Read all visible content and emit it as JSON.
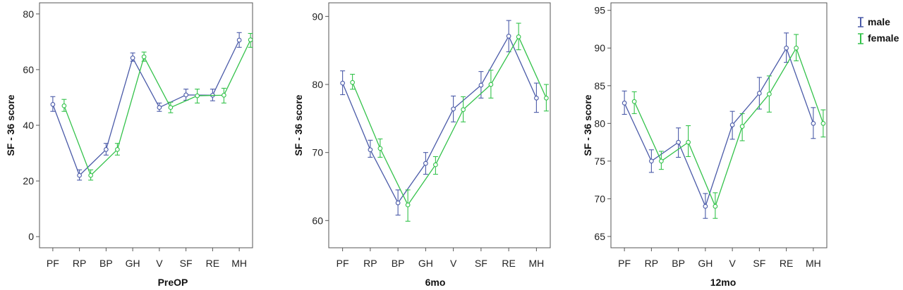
{
  "legend": {
    "position": "top-right",
    "entries": [
      {
        "name": "male",
        "color": "#4a5aa8"
      },
      {
        "name": "female",
        "color": "#33c24a"
      }
    ]
  },
  "chart_data": [
    {
      "type": "line",
      "xlabel": "PreOP",
      "ylabel": "SF - 36 score",
      "categories": [
        "PF",
        "RP",
        "BP",
        "GH",
        "V",
        "SF",
        "RE",
        "MH"
      ],
      "ylim": [
        -4,
        84
      ],
      "yticks": [
        0,
        20,
        40,
        60,
        80
      ],
      "grid": false,
      "series": [
        {
          "name": "male",
          "color": "#4a5aa8",
          "values": [
            47.5,
            22.0,
            31.3,
            64.2,
            46.4,
            50.9,
            50.8,
            70.6
          ],
          "ci": [
            [
              45.0,
              50.3
            ],
            [
              20.3,
              24.0
            ],
            [
              29.3,
              33.5
            ],
            [
              63.0,
              66.0
            ],
            [
              45.0,
              48.0
            ],
            [
              49.0,
              53.0
            ],
            [
              48.8,
              53.0
            ],
            [
              68.0,
              73.3
            ]
          ]
        },
        {
          "name": "female",
          "color": "#33c24a",
          "values": [
            47.0,
            22.0,
            31.3,
            64.6,
            46.4,
            50.6,
            50.8,
            70.7
          ],
          "ci": [
            [
              45.0,
              49.3
            ],
            [
              20.3,
              24.0
            ],
            [
              29.3,
              33.5
            ],
            [
              63.0,
              66.3
            ],
            [
              44.5,
              48.3
            ],
            [
              48.0,
              53.0
            ],
            [
              48.0,
              53.3
            ],
            [
              68.0,
              73.0
            ]
          ]
        }
      ]
    },
    {
      "type": "line",
      "xlabel": "6mo",
      "ylabel": "SF - 36 score",
      "categories": [
        "PF",
        "RP",
        "BP",
        "GH",
        "V",
        "SF",
        "RE",
        "MH"
      ],
      "ylim": [
        56,
        92
      ],
      "yticks": [
        60,
        70,
        80,
        90
      ],
      "grid": false,
      "series": [
        {
          "name": "male",
          "color": "#4a5aa8",
          "values": [
            80.2,
            70.4,
            62.6,
            68.4,
            76.4,
            79.9,
            87.1,
            78.0
          ],
          "ci": [
            [
              78.5,
              82.0
            ],
            [
              69.3,
              71.8
            ],
            [
              60.8,
              64.5
            ],
            [
              66.8,
              70.0
            ],
            [
              74.5,
              78.3
            ],
            [
              78.0,
              81.9
            ],
            [
              84.8,
              89.4
            ],
            [
              75.9,
              80.2
            ]
          ]
        },
        {
          "name": "female",
          "color": "#33c24a",
          "values": [
            80.3,
            70.6,
            62.3,
            68.2,
            76.3,
            80.0,
            87.0,
            78.0
          ],
          "ci": [
            [
              79.3,
              81.5
            ],
            [
              69.3,
              72.0
            ],
            [
              59.9,
              64.5
            ],
            [
              66.8,
              69.4
            ],
            [
              74.5,
              78.2
            ],
            [
              78.0,
              82.1
            ],
            [
              85.1,
              89.0
            ],
            [
              76.1,
              80.0
            ]
          ]
        }
      ]
    },
    {
      "type": "line",
      "xlabel": "12mo",
      "ylabel": "SF - 36 score",
      "categories": [
        "PF",
        "RP",
        "BP",
        "GH",
        "V",
        "SF",
        "RE",
        "MH"
      ],
      "ylim": [
        63.5,
        96
      ],
      "yticks": [
        65,
        70,
        75,
        80,
        85,
        90,
        95
      ],
      "grid": false,
      "series": [
        {
          "name": "male",
          "color": "#4a5aa8",
          "values": [
            82.7,
            75.0,
            77.5,
            69.0,
            79.8,
            84.0,
            90.0,
            80.0
          ],
          "ci": [
            [
              81.2,
              84.3
            ],
            [
              73.5,
              76.5
            ],
            [
              75.5,
              79.4
            ],
            [
              67.4,
              70.7
            ],
            [
              77.9,
              81.6
            ],
            [
              81.9,
              86.1
            ],
            [
              88.1,
              92.0
            ],
            [
              78.0,
              82.1
            ]
          ]
        },
        {
          "name": "female",
          "color": "#33c24a",
          "values": [
            82.9,
            75.0,
            77.5,
            69.0,
            79.6,
            83.9,
            90.0,
            80.0
          ],
          "ci": [
            [
              81.3,
              84.2
            ],
            [
              73.9,
              76.3
            ],
            [
              75.6,
              79.7
            ],
            [
              67.4,
              70.8
            ],
            [
              77.7,
              81.3
            ],
            [
              81.5,
              86.3
            ],
            [
              88.3,
              91.8
            ],
            [
              78.2,
              81.8
            ]
          ]
        }
      ]
    }
  ]
}
